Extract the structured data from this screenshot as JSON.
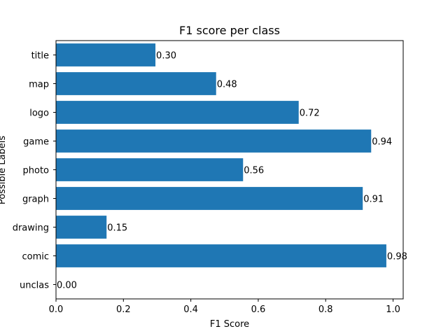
{
  "chart_data": {
    "type": "bar",
    "orientation": "horizontal",
    "title": "F1 score per class",
    "xlabel": "F1 Score",
    "ylabel": "Possible Labels",
    "categories": [
      "unclas",
      "comic",
      "drawing",
      "graph",
      "photo",
      "game",
      "logo",
      "map",
      "title"
    ],
    "values": [
      0.0,
      0.98,
      0.15,
      0.91,
      0.555,
      0.935,
      0.72,
      0.475,
      0.295
    ],
    "data_labels": [
      "0.00",
      "0.98",
      "0.15",
      "0.91",
      "0.56",
      "0.94",
      "0.72",
      "0.48",
      "0.30"
    ],
    "xlim": [
      0,
      1.03
    ],
    "xticks": [
      0.0,
      0.2,
      0.4,
      0.6,
      0.8,
      1.0
    ],
    "xtick_labels": [
      "0.0",
      "0.2",
      "0.4",
      "0.6",
      "0.8",
      "1.0"
    ],
    "grid": false,
    "legend": "none",
    "bar_color": "#1f77b4"
  }
}
